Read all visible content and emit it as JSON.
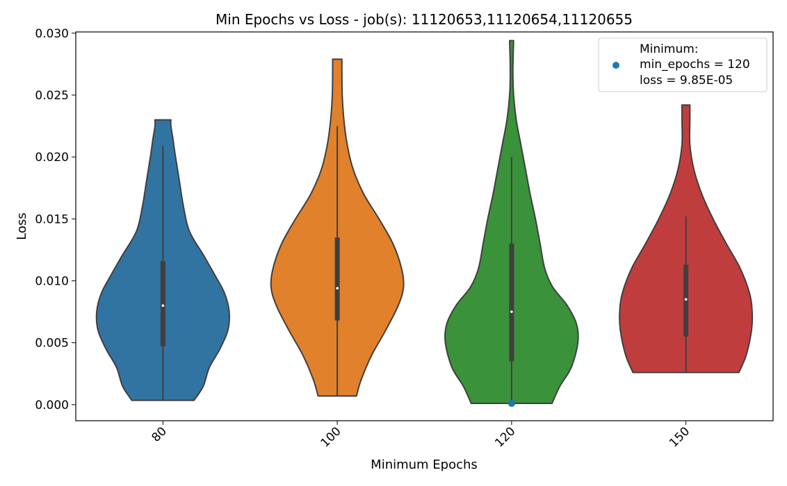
{
  "chart_data": {
    "type": "violin",
    "title": "Min Epochs vs Loss - job(s): 11120653,11120654,11120655",
    "xlabel": "Minimum Epochs",
    "ylabel": "Loss",
    "ylim": [
      -0.0013,
      0.0301
    ],
    "yticks": [
      0.0,
      0.005,
      0.01,
      0.015,
      0.02,
      0.025,
      0.03
    ],
    "ytick_labels": [
      "0.000",
      "0.005",
      "0.010",
      "0.015",
      "0.020",
      "0.025",
      "0.030"
    ],
    "categories": [
      "80",
      "100",
      "120",
      "150"
    ],
    "colors": [
      "#3274a1",
      "#e1812c",
      "#3a923a",
      "#c03d3e"
    ],
    "edge_color": "#3f3f3f",
    "grid": false,
    "legend_placement": "top-right",
    "violins": [
      {
        "category": "80",
        "min": 0.00035,
        "max": 0.023,
        "whisker_low": 0.00035,
        "whisker_high": 0.0209,
        "q1": 0.0047,
        "median": 0.008,
        "q3": 0.0116,
        "profile": [
          [
            0.00035,
            0.47
          ],
          [
            0.0015,
            0.61
          ],
          [
            0.003,
            0.7
          ],
          [
            0.0045,
            0.86
          ],
          [
            0.006,
            0.98
          ],
          [
            0.0075,
            1.0
          ],
          [
            0.009,
            0.93
          ],
          [
            0.0105,
            0.78
          ],
          [
            0.012,
            0.62
          ],
          [
            0.014,
            0.4
          ],
          [
            0.016,
            0.31
          ],
          [
            0.018,
            0.25
          ],
          [
            0.02,
            0.19
          ],
          [
            0.0215,
            0.15
          ],
          [
            0.0225,
            0.12
          ],
          [
            0.023,
            0.12
          ]
        ]
      },
      {
        "category": "100",
        "min": 0.0007,
        "max": 0.0279,
        "whisker_low": 0.0007,
        "whisker_high": 0.0225,
        "q1": 0.0068,
        "median": 0.0094,
        "q3": 0.0135,
        "profile": [
          [
            0.0007,
            0.29
          ],
          [
            0.002,
            0.36
          ],
          [
            0.004,
            0.52
          ],
          [
            0.006,
            0.73
          ],
          [
            0.008,
            0.92
          ],
          [
            0.0095,
            1.0
          ],
          [
            0.011,
            0.97
          ],
          [
            0.013,
            0.84
          ],
          [
            0.015,
            0.63
          ],
          [
            0.017,
            0.4
          ],
          [
            0.019,
            0.24
          ],
          [
            0.021,
            0.15
          ],
          [
            0.023,
            0.1
          ],
          [
            0.025,
            0.075
          ],
          [
            0.027,
            0.07
          ],
          [
            0.0279,
            0.07
          ]
        ]
      },
      {
        "category": "120",
        "min": 0.0001,
        "max": 0.0294,
        "whisker_low": 0.0001,
        "whisker_high": 0.02,
        "q1": 0.0035,
        "median": 0.0075,
        "q3": 0.013,
        "profile": [
          [
            0.0001,
            0.61
          ],
          [
            0.0015,
            0.73
          ],
          [
            0.003,
            0.9
          ],
          [
            0.005,
            1.0
          ],
          [
            0.0065,
            0.98
          ],
          [
            0.008,
            0.84
          ],
          [
            0.0095,
            0.62
          ],
          [
            0.011,
            0.5
          ],
          [
            0.013,
            0.43
          ],
          [
            0.015,
            0.36
          ],
          [
            0.017,
            0.28
          ],
          [
            0.019,
            0.21
          ],
          [
            0.021,
            0.14
          ],
          [
            0.023,
            0.07
          ],
          [
            0.025,
            0.03
          ],
          [
            0.027,
            0.02
          ],
          [
            0.0294,
            0.03
          ]
        ]
      },
      {
        "category": "150",
        "min": 0.0026,
        "max": 0.0242,
        "whisker_low": 0.0026,
        "whisker_high": 0.0152,
        "q1": 0.0055,
        "median": 0.0085,
        "q3": 0.0113,
        "profile": [
          [
            0.0026,
            0.8
          ],
          [
            0.004,
            0.91
          ],
          [
            0.006,
            0.99
          ],
          [
            0.0075,
            1.0
          ],
          [
            0.009,
            0.96
          ],
          [
            0.011,
            0.82
          ],
          [
            0.013,
            0.61
          ],
          [
            0.015,
            0.41
          ],
          [
            0.017,
            0.24
          ],
          [
            0.019,
            0.12
          ],
          [
            0.021,
            0.06
          ],
          [
            0.023,
            0.06
          ],
          [
            0.0242,
            0.06
          ]
        ]
      }
    ],
    "minimum_point": {
      "category": "120",
      "value": 9.85e-05,
      "color": "#1f77b4"
    },
    "legend": {
      "lines": [
        "Minimum:",
        "min_epochs = 120",
        "loss = 9.85E-05"
      ]
    }
  }
}
